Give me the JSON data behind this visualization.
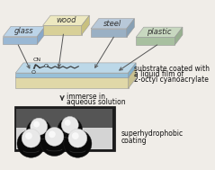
{
  "bg": "#f0ede8",
  "glass_top": "#bcd4e8",
  "glass_front": "#9ab8d4",
  "glass_side": "#88a8c8",
  "wood_top": "#ede8c0",
  "wood_front": "#d8d098",
  "wood_side": "#c8c080",
  "steel_top": "#b8c8d8",
  "steel_front": "#9ab0c4",
  "steel_side": "#88a0b4",
  "plastic_top": "#c8d8c0",
  "plastic_front": "#a8c0a0",
  "plastic_side": "#98b090",
  "coat_top": "#bcd8e8",
  "coat_front": "#98c0d8",
  "coat_side": "#80b0cc",
  "sub_top": "#f0e8c0",
  "sub_front": "#e0d8a8",
  "sub_side": "#c8c090",
  "labels": [
    "glass",
    "wood",
    "steel",
    "plastic"
  ],
  "right_text": [
    "substrate coated with",
    "a liquid film of",
    "2-octyl cyanoacrylate"
  ],
  "immerse_text": [
    "immerse in",
    "aqueous solution"
  ],
  "bottom_text": [
    "superhydrophobic",
    "coating"
  ],
  "label_fs": 6.0,
  "desc_fs": 5.5,
  "photo_bg": "#1a1a1a",
  "photo_mid": "#888888",
  "photo_light": "#cccccc"
}
